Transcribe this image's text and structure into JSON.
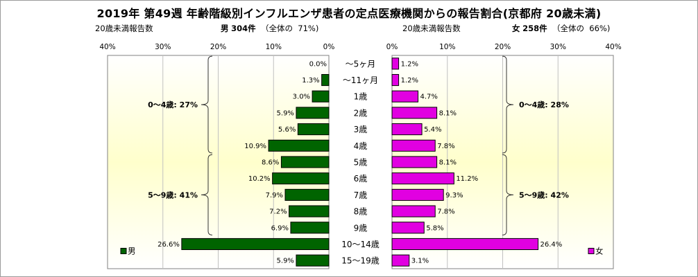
{
  "title": "2019年 第49週 年齢階級別インフルエンザ患者の定点医療機関からの報告割合(京都府 20歳未満)",
  "left_header": {
    "caption": "20歳未満報告数",
    "sex": "男",
    "count": "304件",
    "total_label": "（全体の",
    "total_pct": "71%)"
  },
  "right_header": {
    "caption": "20歳未満報告数",
    "sex": "女",
    "count": "258件",
    "total_label": "（全体の",
    "total_pct": "66%)"
  },
  "colors": {
    "male": "#006400",
    "female": "#e100e1",
    "plot_bg_top": "#ffffff",
    "plot_bg_mid": "#ffffcc"
  },
  "chart_data": {
    "type": "bar",
    "orientation": "horizontal",
    "layout": "population-pyramid",
    "categories": [
      "～5ヶ月",
      "～11ヶ月",
      "1歳",
      "2歳",
      "3歳",
      "4歳",
      "5歳",
      "6歳",
      "7歳",
      "8歳",
      "9歳",
      "10～14歳",
      "15～19歳"
    ],
    "axis_ticks": [
      "40%",
      "30%",
      "20%",
      "10%",
      "0%"
    ],
    "axis_ticks_right": [
      "0%",
      "10%",
      "20%",
      "30%",
      "40%"
    ],
    "xlim": [
      0,
      40
    ],
    "grid": true,
    "series": [
      {
        "name": "男",
        "side": "left",
        "values": [
          0.0,
          1.3,
          3.0,
          5.9,
          5.6,
          10.9,
          8.6,
          10.2,
          7.9,
          7.2,
          6.9,
          26.6,
          5.9
        ],
        "labels": [
          "0.0%",
          "1.3%",
          "3.0%",
          "5.9%",
          "5.6%",
          "10.9%",
          "8.6%",
          "10.2%",
          "7.9%",
          "7.2%",
          "6.9%",
          "26.6%",
          "5.9%"
        ]
      },
      {
        "name": "女",
        "side": "right",
        "values": [
          1.2,
          1.2,
          4.7,
          8.1,
          5.4,
          7.8,
          8.1,
          11.2,
          9.3,
          7.8,
          5.8,
          26.4,
          3.1
        ],
        "labels": [
          "1.2%",
          "1.2%",
          "4.7%",
          "8.1%",
          "5.4%",
          "7.8%",
          "8.1%",
          "11.2%",
          "9.3%",
          "7.8%",
          "5.8%",
          "26.4%",
          "3.1%"
        ]
      }
    ],
    "annotations": {
      "left": [
        {
          "text": "0～4歳: 27%",
          "from": 0,
          "to": 5
        },
        {
          "text": "5～9歳: 41%",
          "from": 6,
          "to": 10
        }
      ],
      "right": [
        {
          "text": "0～4歳: 28%",
          "from": 0,
          "to": 5
        },
        {
          "text": "5～9歳: 42%",
          "from": 6,
          "to": 10
        }
      ]
    },
    "legend": {
      "left": {
        "label": "男",
        "position": "bottom-left"
      },
      "right": {
        "label": "女",
        "position": "bottom-right"
      }
    }
  }
}
